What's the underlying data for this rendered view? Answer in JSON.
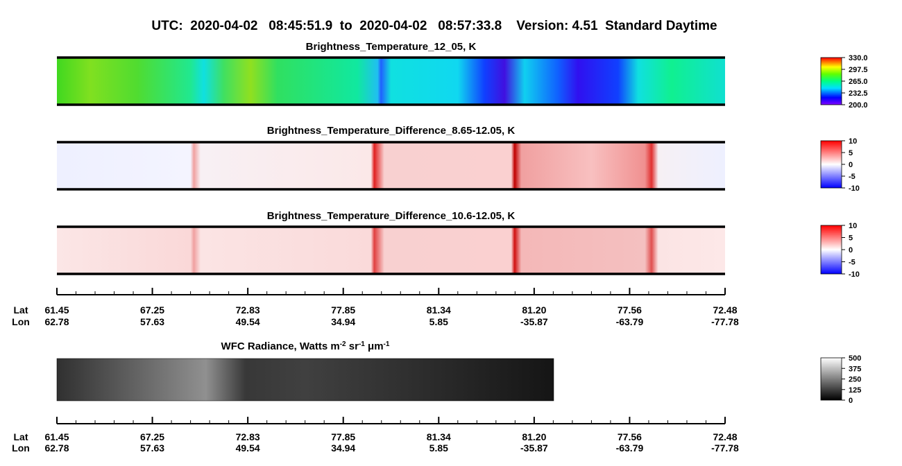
{
  "chart_data": [
    {
      "type": "heatmap",
      "title": "Brightness_Temperature_12_05, K",
      "colormap": "rainbow",
      "colorbar_lim": [
        200,
        330
      ],
      "colorbar_ticks": [
        {
          "value": 330,
          "label": "330.0"
        },
        {
          "value": 297.5,
          "label": "297.5"
        },
        {
          "value": 265,
          "label": "265.0"
        },
        {
          "value": 232.5,
          "label": "232.5"
        },
        {
          "value": 200,
          "label": "200.0"
        }
      ]
    },
    {
      "type": "heatmap",
      "title": "Brightness_Temperature_Difference_8.65-12.05, K",
      "colormap": "diverging",
      "colorbar_lim": [
        -10,
        10
      ],
      "colorbar_ticks": [
        10,
        5,
        0,
        -5,
        -10
      ]
    },
    {
      "type": "heatmap",
      "title": "Brightness_Temperature_Difference_10.6-12.05, K",
      "colormap": "diverging",
      "colorbar_lim": [
        -10,
        10
      ],
      "colorbar_ticks": [
        10,
        5,
        0,
        -5,
        -10
      ]
    },
    {
      "type": "heatmap",
      "title_parts": [
        "WFC Radiance, Watts m",
        "-2",
        " sr",
        "-1",
        " μm",
        "-1"
      ],
      "colormap": "gray",
      "colorbar_lim": [
        0,
        500
      ],
      "colorbar_ticks": [
        500,
        375,
        250,
        125,
        0
      ]
    }
  ],
  "header": {
    "title": "UTC:  2020-04-02   08:45:51.9  to  2020-04-02   08:57:33.8    Version: 4.51  Standard Daytime"
  },
  "x_axis": {
    "row_labels": [
      "Lat",
      "Lon"
    ],
    "lat": [
      "61.45",
      "67.25",
      "72.83",
      "77.85",
      "81.34",
      "81.20",
      "77.56",
      "72.48"
    ],
    "lon": [
      "62.78",
      "57.63",
      "49.54",
      "34.94",
      "5.85",
      "-35.87",
      "-63.79",
      "-77.78"
    ]
  }
}
